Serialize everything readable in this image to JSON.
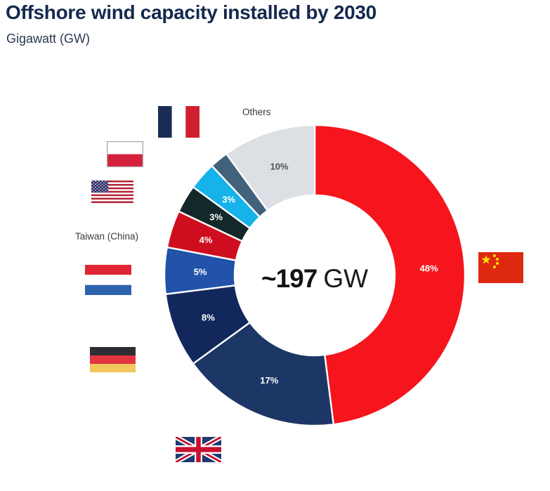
{
  "page": {
    "title": "Offshore wind capacity installed by 2030",
    "subtitle": "Gigawatt (GW)",
    "background_color": "#FFFFFF",
    "title_color": "#15294E"
  },
  "chart_data": {
    "type": "pie",
    "style": "donut",
    "title": "Offshore wind capacity installed by 2030",
    "unit": "Gigawatt (GW)",
    "center_value": "~197",
    "center_unit": "GW",
    "total_gw_approx": 197,
    "start_angle_deg": 0,
    "direction": "clockwise",
    "legend_position": "none",
    "segments": [
      {
        "name": "China",
        "percent": 48,
        "label": "48%",
        "color": "#F6141D",
        "label_color": "#FFFFFF",
        "flag": "china"
      },
      {
        "name": "United Kingdom",
        "percent": 17,
        "label": "17%",
        "color": "#1C3666",
        "label_color": "#FFFFFF",
        "flag": "united-kingdom"
      },
      {
        "name": "Germany",
        "percent": 8,
        "label": "8%",
        "color": "#12285C",
        "label_color": "#FFFFFF",
        "flag": "germany"
      },
      {
        "name": "Netherlands",
        "percent": 5,
        "label": "5%",
        "color": "#2252A9",
        "label_color": "#FFFFFF",
        "flag": "netherlands"
      },
      {
        "name": "Taiwan (China)",
        "percent": 4,
        "label": "4%",
        "color": "#CE0E1E",
        "label_color": "#FFFFFF",
        "flag": null
      },
      {
        "name": "United States",
        "percent": 3,
        "label": "3%",
        "color": "#122829",
        "label_color": "#FFFFFF",
        "flag": "united-states"
      },
      {
        "name": "Poland",
        "percent": 3,
        "label": "3%",
        "color": "#16B2EA",
        "label_color": "#FFFFFF",
        "flag": "poland"
      },
      {
        "name": "France",
        "percent": 2,
        "label": "",
        "color": "#41627A",
        "label_color": "#FFFFFF",
        "flag": "france"
      },
      {
        "name": "Others",
        "percent": 10,
        "label": "10%",
        "color": "#DCE0E5",
        "label_color": "#4D5257",
        "flag": null
      }
    ],
    "external_labels": {
      "others": "Others",
      "taiwan": "Taiwan (China)"
    }
  }
}
